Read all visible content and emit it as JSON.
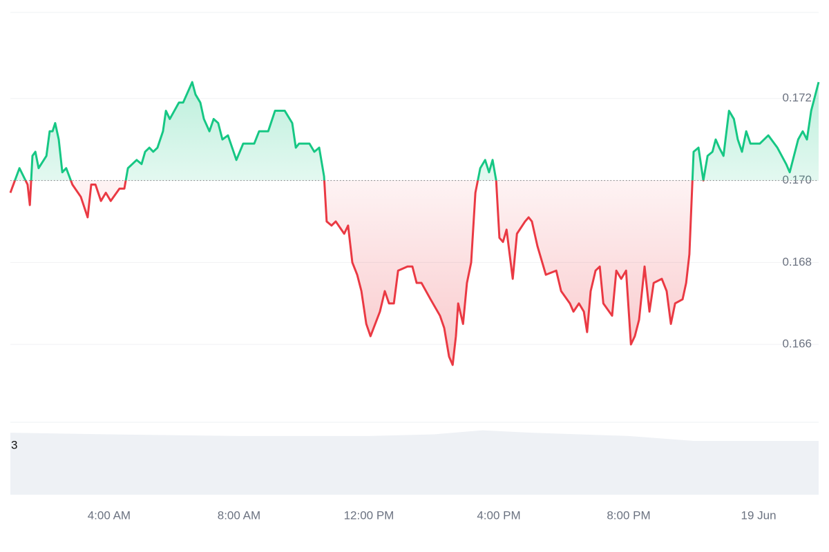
{
  "chart_data": {
    "type": "line",
    "x": [
      0.96,
      1.24,
      1.49,
      1.56,
      1.64,
      1.73,
      1.83,
      2.07,
      2.17,
      2.26,
      2.34,
      2.45,
      2.56,
      2.68,
      2.87,
      3.13,
      3.34,
      3.45,
      3.58,
      3.75,
      3.9,
      4.05,
      4.32,
      4.47,
      4.58,
      4.85,
      5.0,
      5.11,
      5.24,
      5.36,
      5.49,
      5.66,
      5.75,
      5.87,
      6.15,
      6.28,
      6.56,
      6.66,
      6.81,
      6.92,
      7.09,
      7.22,
      7.36,
      7.49,
      7.66,
      7.92,
      8.13,
      8.47,
      8.62,
      8.9,
      9.11,
      9.41,
      9.64,
      9.75,
      9.85,
      10.17,
      10.32,
      10.47,
      10.62,
      10.7,
      10.85,
      10.98,
      11.24,
      11.36,
      11.49,
      11.64,
      11.77,
      11.92,
      12.05,
      12.34,
      12.49,
      12.62,
      12.77,
      12.9,
      13.19,
      13.34,
      13.47,
      13.62,
      13.9,
      14.19,
      14.32,
      14.47,
      14.58,
      14.68,
      14.75,
      14.9,
      15.02,
      15.15,
      15.28,
      15.43,
      15.58,
      15.7,
      15.81,
      15.92,
      16.02,
      16.13,
      16.24,
      16.43,
      16.56,
      16.81,
      16.92,
      17.02,
      17.19,
      17.45,
      17.77,
      17.92,
      18.19,
      18.3,
      18.47,
      18.62,
      18.72,
      18.83,
      18.98,
      19.11,
      19.22,
      19.49,
      19.62,
      19.77,
      19.92,
      20.07,
      20.19,
      20.32,
      20.49,
      20.64,
      20.77,
      21.02,
      21.17,
      21.3,
      21.43,
      21.66,
      21.77,
      21.87,
      22.0,
      22.15,
      22.3,
      22.43,
      22.58,
      22.68,
      22.79,
      22.92,
      23.09,
      23.24,
      23.36,
      23.49,
      23.62,
      23.75,
      24.04,
      24.3,
      24.58,
      24.85,
      24.96,
      25.22,
      25.36,
      25.49,
      25.62,
      25.85
    ],
    "values": [
      0.1697,
      0.1703,
      0.1699,
      0.1694,
      0.1706,
      0.1707,
      0.1703,
      0.1706,
      0.1712,
      0.1712,
      0.1714,
      0.171,
      0.1702,
      0.1703,
      0.1699,
      0.1696,
      0.1691,
      0.1699,
      0.1699,
      0.1695,
      0.1697,
      0.1695,
      0.1698,
      0.1698,
      0.1703,
      0.1705,
      0.1704,
      0.1707,
      0.1708,
      0.1707,
      0.1708,
      0.1712,
      0.1717,
      0.1715,
      0.1719,
      0.1719,
      0.1724,
      0.1721,
      0.1719,
      0.1715,
      0.1712,
      0.1715,
      0.1714,
      0.171,
      0.1711,
      0.1705,
      0.1709,
      0.1709,
      0.1712,
      0.1712,
      0.1717,
      0.1717,
      0.1714,
      0.1708,
      0.1709,
      0.1709,
      0.1707,
      0.1708,
      0.1701,
      0.169,
      0.1689,
      0.169,
      0.1687,
      0.1689,
      0.168,
      0.1677,
      0.1673,
      0.1665,
      0.1662,
      0.1668,
      0.1673,
      0.167,
      0.167,
      0.1678,
      0.1679,
      0.1679,
      0.1675,
      0.1675,
      0.1671,
      0.1667,
      0.1664,
      0.1657,
      0.1655,
      0.1662,
      0.167,
      0.1665,
      0.1675,
      0.168,
      0.1697,
      0.1703,
      0.1705,
      0.1702,
      0.1705,
      0.17,
      0.1686,
      0.1685,
      0.1688,
      0.1676,
      0.1687,
      0.169,
      0.1691,
      0.169,
      0.1684,
      0.1677,
      0.1678,
      0.1673,
      0.167,
      0.1668,
      0.167,
      0.1668,
      0.1663,
      0.1673,
      0.1678,
      0.1679,
      0.167,
      0.1667,
      0.1678,
      0.1676,
      0.1678,
      0.166,
      0.1662,
      0.1666,
      0.1679,
      0.1668,
      0.1675,
      0.1676,
      0.1673,
      0.1665,
      0.167,
      0.1671,
      0.1675,
      0.1682,
      0.1707,
      0.1708,
      0.17,
      0.1706,
      0.1707,
      0.171,
      0.1708,
      0.1706,
      0.1717,
      0.1715,
      0.171,
      0.1707,
      0.1712,
      0.1709,
      0.1709,
      0.1711,
      0.1708,
      0.1704,
      0.1702,
      0.171,
      0.1712,
      0.171,
      0.1717,
      0.1724
    ],
    "baseline": 0.17,
    "above_color": "#16c784",
    "below_color": "#ea3943",
    "xlim": [
      0.96,
      25.85
    ],
    "ylim": [
      0.1641,
      0.1741
    ],
    "xticks": [
      {
        "value": 4,
        "label": "4:00 AM"
      },
      {
        "value": 8,
        "label": "8:00 AM"
      },
      {
        "value": 12,
        "label": "12:00 PM"
      },
      {
        "value": 16,
        "label": "4:00 PM"
      },
      {
        "value": 20,
        "label": "8:00 PM"
      },
      {
        "value": 24,
        "label": "19 Jun"
      }
    ],
    "yticks": [
      0.166,
      0.168,
      {
        "value": 0.17,
        "label": "0.170"
      },
      0.172
    ],
    "grid": true,
    "volume": {
      "x": [
        0.96,
        4,
        8,
        12,
        14,
        15.5,
        17,
        20,
        22,
        25.85
      ],
      "values": [
        3.8,
        3.7,
        3.6,
        3.6,
        3.7,
        3.95,
        3.8,
        3.6,
        3.3,
        3.3
      ],
      "ylim": [
        0,
        4.44
      ],
      "yticks": [
        3
      ],
      "color": "#eef1f5"
    }
  }
}
